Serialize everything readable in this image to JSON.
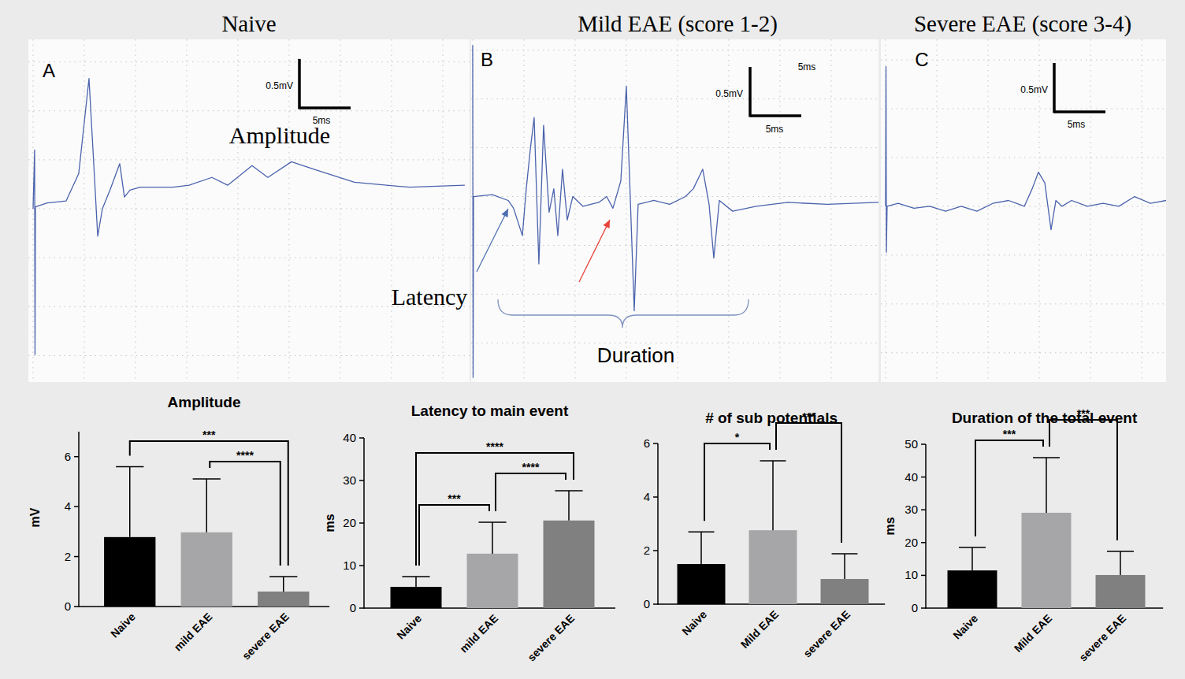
{
  "chart_data": [
    {
      "type": "line",
      "title": "Naive",
      "panel_label": "A",
      "color": "#4b63ad",
      "grid": true,
      "tick_labels": false,
      "xlim": [
        -0.46,
        42.62
      ],
      "ylim": [
        -1.77,
        1.73
      ],
      "xticks": [
        0,
        5,
        10,
        15,
        20,
        25,
        30,
        35,
        40
      ],
      "yticks": [
        -1.5,
        -1,
        -0.5,
        0,
        0.5,
        1,
        1.5
      ],
      "x": [
        0,
        0.15,
        0.19,
        0.23,
        1.38,
        3.23,
        4.46,
        5.46,
        5.85,
        6.31,
        6.77,
        7.54,
        8.46,
        8.92,
        9.46,
        10.46,
        13.69,
        15.23,
        17.46,
        19,
        21.38,
        22.92,
        25.23,
        27.54,
        31.38,
        36.77,
        42.15
      ],
      "values": [
        0,
        0.6,
        -1.49,
        0.02,
        0.06,
        0.08,
        0.36,
        1.33,
        0.6,
        -0.28,
        0,
        0.2,
        0.46,
        0.12,
        0.19,
        0.22,
        0.22,
        0.24,
        0.32,
        0.24,
        0.44,
        0.32,
        0.48,
        0.4,
        0.27,
        0.22,
        0.24
      ],
      "scale_bar": {
        "x": 5,
        "x_label": "5ms",
        "y": 0.5,
        "y_label": "0.5mV"
      },
      "annotations": [
        "Amplitude"
      ]
    },
    {
      "type": "line",
      "title": "Mild EAE (score 1-2)",
      "panel_label": "B",
      "color": "#4b63ad",
      "grid": true,
      "tick_labels": false,
      "xlim": [
        -0.15,
        39.62
      ],
      "ylim": [
        -1.9,
        1.61
      ],
      "xticks": [
        0,
        5,
        10,
        15,
        20,
        25,
        30,
        35
      ],
      "yticks": [
        -1.5,
        -1,
        -0.5,
        0,
        0.5,
        1,
        1.5
      ],
      "x": [
        0,
        0.04,
        0.08,
        1.92,
        3.46,
        3.99,
        4.85,
        5.23,
        5.62,
        6,
        6.46,
        6.92,
        7.46,
        7.92,
        8.31,
        8.77,
        9.23,
        9.77,
        10.77,
        12.31,
        13.08,
        13.69,
        14.46,
        15,
        15.38,
        15.77,
        16.15,
        17.69,
        19.23,
        20.77,
        21.54,
        22.46,
        23.08,
        23.54,
        24.08,
        25.38,
        27.69,
        30.77,
        34.62,
        39.62
      ],
      "values": [
        1.55,
        -1.85,
        0,
        0.02,
        -0.04,
        -0.12,
        -0.4,
        0.08,
        0.48,
        0.81,
        -0.69,
        0.73,
        -0.16,
        0.08,
        -0.4,
        0.28,
        -0.24,
        0,
        -0.1,
        -0.06,
        0,
        -0.12,
        0.16,
        1.13,
        0,
        -1.17,
        -0.08,
        -0.04,
        -0.08,
        0,
        0.08,
        0.28,
        -0.08,
        -0.63,
        -0.04,
        -0.15,
        -0.1,
        -0.06,
        -0.08,
        -0.06
      ],
      "scale_bar": {
        "x": 5,
        "x_label": "5ms",
        "y": 0.5,
        "y_label": "0.5mV"
      },
      "annotations": [
        "5ms",
        "Latency",
        "Duration"
      ]
    },
    {
      "type": "line",
      "title": "Severe EAE (score 3-4)",
      "panel_label": "C",
      "color": "#4b63ad",
      "grid": true,
      "tick_labels": false,
      "xlim": [
        -0.46,
        27.38
      ],
      "ylim": [
        -1.8,
        1.71
      ],
      "xticks": [
        0,
        5,
        10,
        15,
        20,
        25
      ],
      "yticks": [
        -1.5,
        -1,
        -0.5,
        0,
        0.5,
        1,
        1.5
      ],
      "x": [
        0,
        0.04,
        0.08,
        0.15,
        1.23,
        2.77,
        4.31,
        5.85,
        7.38,
        8.92,
        10.46,
        12,
        13.54,
        14.31,
        14.92,
        15.54,
        16.15,
        16.62,
        17.23,
        18.15,
        19.69,
        21.23,
        22.77,
        24.31,
        25.85,
        27.38
      ],
      "values": [
        0,
        1.43,
        -0.47,
        0,
        0.03,
        -0.02,
        0,
        -0.05,
        0,
        -0.05,
        0.03,
        0.06,
        0,
        0.18,
        0.35,
        0.24,
        -0.24,
        0.06,
        0,
        0.06,
        0,
        0.03,
        0,
        0.1,
        0.03,
        0.06
      ],
      "scale_bar": {
        "x": 5,
        "x_label": "5ms",
        "y": 0.5,
        "y_label": "0.5mV"
      }
    },
    {
      "type": "bar",
      "title": "Amplitude",
      "y_label": "mV",
      "categories": [
        "Naive",
        "mild EAE",
        "severe EAE"
      ],
      "values": [
        2.78,
        2.97,
        0.6
      ],
      "errors": [
        2.82,
        2.14,
        0.6
      ],
      "colors": [
        "#000000",
        "#a6a6a8",
        "#808080"
      ],
      "ylim": [
        0,
        7
      ],
      "yticks": [
        0,
        2,
        4,
        6
      ],
      "significance": [
        {
          "from": 0,
          "to": 2,
          "label": "***"
        },
        {
          "from": 1,
          "to": 2,
          "label": "****"
        }
      ]
    },
    {
      "type": "bar",
      "title": "Latency to main event",
      "y_label": "ms",
      "categories": [
        "Naive",
        "mild EAE",
        "severe EAE"
      ],
      "values": [
        5,
        12.8,
        20.6
      ],
      "errors": [
        2.4,
        7.4,
        7
      ],
      "colors": [
        "#000000",
        "#a6a6a8",
        "#808080"
      ],
      "ylim": [
        0,
        40
      ],
      "yticks": [
        0,
        10,
        20,
        30,
        40
      ],
      "significance": [
        {
          "from": 0,
          "to": 2,
          "label": "****"
        },
        {
          "from": 0,
          "to": 1,
          "label": "***"
        },
        {
          "from": 1,
          "to": 2,
          "label": "****"
        }
      ]
    },
    {
      "type": "bar",
      "title": "# of sub potentials",
      "categories": [
        "Naive",
        "Mild EAE",
        "severe EAE"
      ],
      "values": [
        1.5,
        2.76,
        0.94
      ],
      "errors": [
        1.2,
        2.59,
        0.94
      ],
      "colors": [
        "#000000",
        "#a6a6a8",
        "#808080"
      ],
      "ylim": [
        0,
        6
      ],
      "yticks": [
        0,
        2,
        4,
        6
      ],
      "significance": [
        {
          "from": 0,
          "to": 1,
          "label": "*"
        },
        {
          "from": 1,
          "to": 2,
          "label": "***"
        }
      ]
    },
    {
      "type": "bar",
      "title": "Duration of the total event",
      "y_label": "ms",
      "categories": [
        "Naive",
        "Mild EAE",
        "severe EAE"
      ],
      "values": [
        11.5,
        29.1,
        10.1
      ],
      "errors": [
        7,
        16.8,
        7.2
      ],
      "colors": [
        "#000000",
        "#a6a6a8",
        "#808080"
      ],
      "ylim": [
        0,
        50
      ],
      "yticks": [
        0,
        10,
        20,
        30,
        40,
        50
      ],
      "significance": [
        {
          "from": 0,
          "to": 1,
          "label": "***"
        },
        {
          "from": 1,
          "to": 2,
          "label": "***"
        }
      ]
    }
  ]
}
